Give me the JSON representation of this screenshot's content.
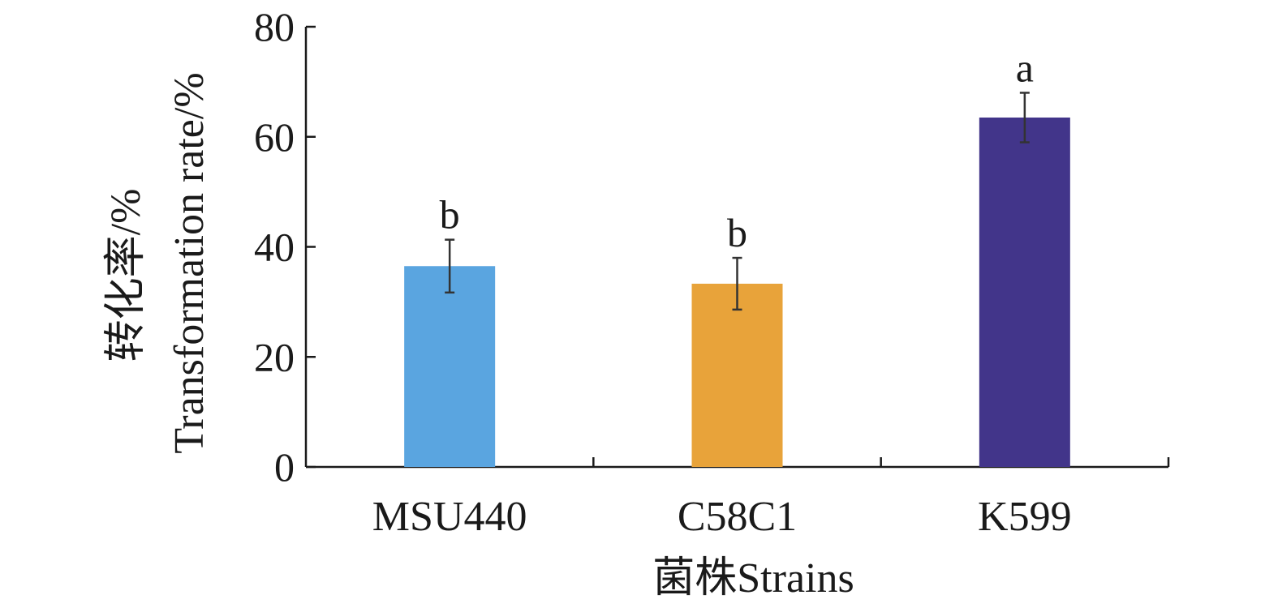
{
  "chart_data": {
    "type": "bar",
    "categories": [
      "MSU440",
      "C58C1",
      "K599"
    ],
    "values": [
      36.5,
      33.3,
      63.5
    ],
    "errors": [
      4.8,
      4.7,
      4.5
    ],
    "significance": [
      "b",
      "b",
      "a"
    ],
    "colors": [
      "#5aa5e0",
      "#e8a33a",
      "#42358a"
    ],
    "xlabel": "菌株Strains",
    "ylabel_cn": "转化率/%",
    "ylabel_en": "Transformation rate/%",
    "ylim": [
      0,
      80
    ],
    "yticks": [
      "0",
      "20",
      "40",
      "60",
      "80"
    ],
    "grid": false,
    "legend": "none"
  }
}
